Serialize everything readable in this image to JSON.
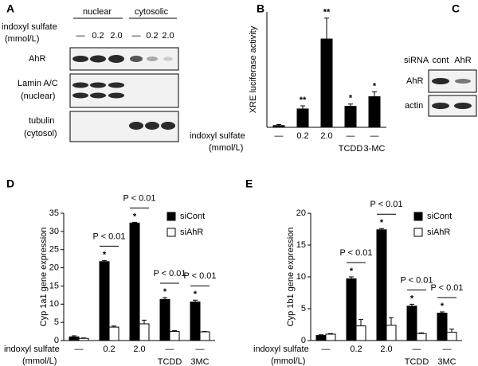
{
  "panel_a": {
    "letter": "A",
    "groups": [
      "nuclear",
      "cytosolic"
    ],
    "treatment": [
      "indoxyl sulfate",
      "(mmol/L)"
    ],
    "lanes": [
      "—",
      "0.2",
      "2.0",
      "—",
      "0.2",
      "2.0"
    ],
    "rows": [
      [
        "AhR"
      ],
      [
        "Lamin A/C",
        "(nuclear)"
      ],
      [
        "tubulin",
        "(cytosol)"
      ]
    ]
  },
  "panel_c": {
    "letter": "C",
    "header": "siRNA",
    "lanes": [
      "cont",
      "AhR"
    ],
    "rows": [
      "AhR",
      "actin"
    ]
  },
  "chart_data": [
    {
      "type": "bar",
      "panel": "B",
      "ylabel": "XRE luciferase activity",
      "xlabel": [
        "indoxyl sulfate",
        "(mmol/L)"
      ],
      "categories": [
        "—",
        "0.2",
        "2.0",
        "—",
        "—"
      ],
      "sublabels": [
        null,
        null,
        null,
        "TCDD",
        "3-MC"
      ],
      "values": [
        1,
        10.5,
        50.5,
        12,
        17.5
      ],
      "errors": [
        0.6,
        1.8,
        12,
        1.3,
        2.8
      ],
      "color": "#000000",
      "significance": [
        null,
        "**",
        "**",
        "*",
        "*"
      ],
      "ylim": [
        0,
        66
      ]
    },
    {
      "type": "bar",
      "panel": "D",
      "ylabel": "Cyp 1a1 gene expression",
      "xlabel": [
        "indoxyl sulfate",
        "(mmol/L)"
      ],
      "categories": [
        "—",
        "0.2",
        "2.0",
        "—",
        "—"
      ],
      "sublabels": [
        null,
        null,
        null,
        "TCDD",
        "3MC"
      ],
      "ylim": [
        0,
        35
      ],
      "yticks": [
        0,
        5,
        10,
        15,
        20,
        25,
        30,
        35
      ],
      "series": [
        {
          "name": "siCont",
          "color": "#000000",
          "values": [
            1,
            21.7,
            32.3,
            11.3,
            10.6
          ],
          "errors": [
            0.3,
            0.3,
            0.2,
            0.5,
            0.5
          ]
        },
        {
          "name": "siAhR",
          "color": "#ffffff",
          "values": [
            0.6,
            3.7,
            4.6,
            2.5,
            2.4
          ],
          "errors": [
            0.1,
            0.3,
            1,
            0.2,
            0.1
          ]
        }
      ],
      "significance": [
        null,
        "*",
        "*",
        "*",
        "*"
      ],
      "annotations": [
        null,
        "P < 0.01",
        "P < 0.01",
        "P < 0.01",
        "P < 0.01"
      ]
    },
    {
      "type": "bar",
      "panel": "E",
      "ylabel": "Cyp 1b1 gene expression",
      "xlabel": [
        "indoxyl sulfate",
        "(mmol/L)"
      ],
      "categories": [
        "—",
        "0.2",
        "2.0",
        "—",
        "—"
      ],
      "sublabels": [
        null,
        null,
        null,
        "TCDD",
        "3MC"
      ],
      "ylim": [
        0,
        20
      ],
      "yticks": [
        0,
        5,
        10,
        15,
        20
      ],
      "series": [
        {
          "name": "siCont",
          "color": "#000000",
          "values": [
            0.8,
            9.7,
            17.4,
            5.4,
            4.3
          ],
          "errors": [
            0.1,
            0.3,
            0.2,
            0.3,
            0.2
          ]
        },
        {
          "name": "siAhR",
          "color": "#ffffff",
          "values": [
            1,
            2.3,
            2.4,
            1.1,
            1.3
          ],
          "errors": [
            0.1,
            1,
            1.2,
            0.1,
            0.5
          ]
        }
      ],
      "significance": [
        null,
        "*",
        "*",
        "*",
        "*"
      ],
      "annotations": [
        null,
        "P < 0.01",
        "P < 0.01",
        "P < 0.01",
        "P < 0.01"
      ]
    }
  ]
}
